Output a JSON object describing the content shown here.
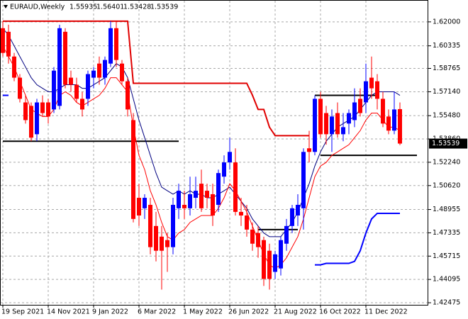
{
  "chart_data": {
    "type": "candlestick",
    "title": "EURAUD,Weekly",
    "categories": [
      "19 Sep 2021",
      null,
      null,
      null,
      null,
      null,
      null,
      null,
      "14 Nov 2021",
      null,
      null,
      null,
      null,
      null,
      null,
      null,
      "9 Jan 2022",
      null,
      null,
      null,
      null,
      null,
      null,
      null,
      "6 Mar 2022",
      null,
      null,
      null,
      null,
      null,
      null,
      null,
      "1 May 2022",
      null,
      null,
      null,
      null,
      null,
      null,
      null,
      "26 Jun 2022",
      null,
      null,
      null,
      null,
      null,
      null,
      null,
      "21 Aug 2022",
      null,
      null,
      null,
      null,
      null,
      null,
      null,
      "16 Oct 2022",
      null,
      null,
      null,
      null,
      null,
      null,
      null,
      "11 Dec 2022",
      null,
      null,
      null,
      null,
      null,
      null
    ],
    "open": [
      1.6156,
      1.6131,
      1.5959,
      1.5812,
      1.564,
      1.5616,
      1.5419,
      1.564,
      1.564,
      1.5591,
      1.5616,
      1.6131,
      1.5812,
      1.5763,
      1.5665,
      1.5665,
      1.5812,
      1.591,
      1.5812,
      1.591,
      1.6156,
      1.591,
      1.5787,
      1.5517,
      1.4977,
      1.4904,
      1.4928,
      1.4781,
      1.4707,
      1.4683,
      1.4634,
      1.4904,
      1.4928,
      1.4904,
      1.4977,
      1.5075,
      1.5026,
      1.5002,
      1.4928,
      1.5124,
      1.5223,
      1.5223,
      1.4879,
      1.4854,
      1.4756,
      1.4732,
      1.4683,
      1.4609,
      1.4462,
      1.4486,
      1.4658,
      1.4781,
      1.4854,
      1.4904,
      1.5321,
      1.5296,
      1.5665,
      1.5566,
      1.5419,
      1.5566,
      1.5419,
      1.5493,
      1.5517,
      1.5665,
      1.564,
      1.5812,
      1.5787,
      1.5665,
      1.5542,
      1.5444,
      1.55935
    ],
    "high": [
      1.6205,
      1.618,
      1.5984,
      1.5837,
      1.5689,
      1.564,
      1.5665,
      1.5689,
      1.5665,
      1.5886,
      1.618,
      1.6156,
      1.5861,
      1.5812,
      1.5714,
      1.5861,
      1.5886,
      1.5959,
      1.5959,
      1.6205,
      1.6205,
      1.5935,
      1.5812,
      1.5566,
      1.5075,
      1.5002,
      1.4977,
      1.4879,
      1.4781,
      1.4732,
      1.4977,
      1.5075,
      1.5026,
      1.5124,
      1.5124,
      1.5173,
      1.5075,
      1.5075,
      1.5173,
      1.5272,
      1.5395,
      1.5321,
      1.4977,
      1.4928,
      1.4806,
      1.4781,
      1.4707,
      1.4658,
      1.4609,
      1.4707,
      1.483,
      1.4928,
      1.5002,
      1.5321,
      1.5443,
      1.5689,
      1.5714,
      1.5616,
      1.5591,
      1.564,
      1.5566,
      1.5591,
      1.5738,
      1.5738,
      1.591,
      1.5959,
      1.5837,
      1.5714,
      1.5591,
      1.5714,
      1.56401
    ],
    "low": [
      1.5959,
      1.591,
      1.5787,
      1.564,
      1.5493,
      1.537,
      1.537,
      1.5542,
      1.5493,
      1.5566,
      1.5591,
      1.5738,
      1.5714,
      1.564,
      1.5542,
      1.5616,
      1.5738,
      1.5763,
      1.5763,
      1.5886,
      1.5886,
      1.5763,
      1.5542,
      1.4806,
      1.4781,
      1.483,
      1.4584,
      1.4535,
      1.4339,
      1.4462,
      1.4584,
      1.483,
      1.483,
      1.4854,
      1.4904,
      1.4879,
      1.4904,
      1.4781,
      1.4879,
      1.5075,
      1.5173,
      1.4854,
      1.4781,
      1.4707,
      1.4609,
      1.456,
      1.4364,
      1.4339,
      1.4413,
      1.4437,
      1.4609,
      1.4732,
      1.4781,
      1.4756,
      1.5223,
      1.5272,
      1.5395,
      1.5346,
      1.5296,
      1.5395,
      1.537,
      1.5419,
      1.5468,
      1.5542,
      1.5566,
      1.5665,
      1.5591,
      1.5468,
      1.5419,
      1.5419,
      1.53428
    ],
    "close": [
      1.5984,
      1.5959,
      1.5812,
      1.5665,
      1.5517,
      1.5395,
      1.564,
      1.5566,
      1.5542,
      1.5861,
      1.6156,
      1.5763,
      1.5763,
      1.5665,
      1.5591,
      1.5837,
      1.5861,
      1.5812,
      1.5935,
      1.6156,
      1.5935,
      1.5787,
      1.5591,
      1.483,
      1.4854,
      1.4977,
      1.4634,
      1.4609,
      1.4609,
      1.4634,
      1.4928,
      1.5026,
      1.4904,
      1.5002,
      1.5026,
      1.4904,
      1.4977,
      1.4854,
      1.5149,
      1.5223,
      1.5296,
      1.4879,
      1.4854,
      1.4756,
      1.4658,
      1.4634,
      1.4413,
      1.4413,
      1.4584,
      1.4683,
      1.4781,
      1.4904,
      1.4928,
      1.5296,
      1.5296,
      1.5665,
      1.5419,
      1.5419,
      1.5542,
      1.5419,
      1.5468,
      1.5566,
      1.564,
      1.5566,
      1.5787,
      1.5738,
      1.5665,
      1.5493,
      1.5444,
      1.5591,
      1.53539
    ],
    "up_color": "#0000ff",
    "down_color": "#ff0000",
    "lines": [
      {
        "color": "#000080",
        "width": 1,
        "values": [
          1.6156,
          1.6107,
          1.6033,
          1.5959,
          1.5886,
          1.5812,
          1.5763,
          1.5738,
          1.5714,
          1.5714,
          1.5738,
          1.5763,
          1.5763,
          1.5763,
          1.5738,
          1.5738,
          1.5763,
          1.5787,
          1.5812,
          1.5861,
          1.591,
          1.5886,
          1.5812,
          1.5665,
          1.5517,
          1.5395,
          1.5272,
          1.5149,
          1.5051,
          1.5026,
          1.5002,
          1.5026,
          1.5002,
          1.5026,
          1.5002,
          1.5002,
          1.4977,
          1.4977,
          1.5002,
          1.5026,
          1.5051,
          1.5002,
          1.4953,
          1.4904,
          1.483,
          1.4781,
          1.4732,
          1.4707,
          1.4707,
          1.4707,
          1.4756,
          1.4806,
          1.4879,
          1.4977,
          1.5075,
          1.5198,
          1.5296,
          1.537,
          1.5419,
          1.5468,
          1.5493,
          1.5517,
          1.5542,
          1.5591,
          1.564,
          1.5689,
          1.5714,
          1.5714,
          1.5714,
          1.5714,
          1.5689
        ]
      },
      {
        "color": "#ff0000",
        "width": 1,
        "values": [
          1.6033,
          1.5959,
          1.5886,
          1.5787,
          1.5689,
          1.5591,
          1.5566,
          1.5542,
          1.5542,
          1.5591,
          1.5689,
          1.5714,
          1.5689,
          1.564,
          1.5616,
          1.564,
          1.5665,
          1.5689,
          1.5738,
          1.5812,
          1.5812,
          1.5763,
          1.5714,
          1.5468,
          1.5272,
          1.5173,
          1.5026,
          1.4928,
          1.4806,
          1.4707,
          1.4683,
          1.4732,
          1.4756,
          1.4806,
          1.483,
          1.4854,
          1.4854,
          1.4854,
          1.4904,
          1.4977,
          1.5075,
          1.5026,
          1.4953,
          1.4879,
          1.4781,
          1.4683,
          1.4584,
          1.4511,
          1.4486,
          1.4511,
          1.456,
          1.4634,
          1.4707,
          1.483,
          1.4977,
          1.5124,
          1.5198,
          1.5223,
          1.5272,
          1.5296,
          1.5321,
          1.5346,
          1.5395,
          1.5444,
          1.5517,
          1.5566,
          1.5566,
          1.5517,
          1.5468,
          1.5468,
          1.5444
        ]
      },
      {
        "color": "#e00000",
        "width": 2,
        "values": [
          1.6205,
          1.6205,
          1.6205,
          1.6205,
          1.6205,
          1.6205,
          1.6205,
          1.6205,
          1.6205,
          1.6205,
          1.6205,
          1.6205,
          1.6205,
          1.6205,
          1.6205,
          1.6205,
          1.6205,
          1.6205,
          1.6205,
          1.6205,
          1.6205,
          1.6205,
          1.6205,
          1.5773,
          1.5773,
          1.5773,
          1.5773,
          1.5773,
          1.5773,
          1.5773,
          1.5773,
          1.5773,
          1.5773,
          1.5773,
          1.5773,
          1.5773,
          1.5773,
          1.5773,
          1.5773,
          1.5773,
          1.5773,
          1.5773,
          1.5773,
          1.5773,
          1.569,
          1.5591,
          1.5591,
          1.5468,
          1.5409,
          1.5409,
          1.5409,
          1.5409,
          1.5409,
          1.5409,
          1.5409,
          null,
          null,
          null,
          null,
          null,
          null,
          null,
          null,
          null,
          null,
          null,
          null,
          null,
          null,
          null,
          null
        ]
      },
      {
        "color": "#0000ff",
        "width": 2,
        "values": [
          1.5689,
          1.5689,
          null,
          null,
          null,
          null,
          null,
          null,
          null,
          null,
          null,
          null,
          null,
          null,
          null,
          null,
          null,
          null,
          null,
          null,
          null,
          null,
          null,
          null,
          null,
          null,
          null,
          null,
          null,
          null,
          null,
          null,
          null,
          null,
          null,
          null,
          null,
          null,
          null,
          null,
          null,
          null,
          null,
          null,
          null,
          null,
          null,
          null,
          null,
          null,
          null,
          null,
          null,
          null,
          null,
          1.4511,
          1.4511,
          1.4521,
          1.4521,
          1.4521,
          1.4521,
          1.4521,
          1.4535,
          1.4609,
          1.4732,
          1.483,
          1.4869,
          1.4869,
          1.4869,
          1.4869,
          1.4869
        ]
      }
    ],
    "levels": [
      {
        "from": 0,
        "to": 31,
        "value": 1.537
      },
      {
        "from": 45,
        "to": 52,
        "value": 1.4756
      },
      {
        "from": 55,
        "to": 66,
        "value": 1.5689
      },
      {
        "from": 56,
        "to": 73,
        "value": 1.5272
      }
    ],
    "ylim": [
      1.4233,
      1.6352
    ],
    "yticks": [
      {
        "value": 1.62,
        "label": "1.62000"
      },
      {
        "value": 1.60335,
        "label": "1.60335"
      },
      {
        "value": 1.58765,
        "label": "1.58765"
      },
      {
        "value": 1.5714,
        "label": "1.57140"
      },
      {
        "value": 1.5548,
        "label": "1.55480"
      },
      {
        "value": 1.5386,
        "label": "1.53860"
      },
      {
        "value": 1.5224,
        "label": "1.52240"
      },
      {
        "value": 1.5062,
        "label": "1.50620"
      },
      {
        "value": 1.48955,
        "label": "1.48955"
      },
      {
        "value": 1.47335,
        "label": "1.47335"
      },
      {
        "value": 1.45715,
        "label": "1.45715"
      },
      {
        "value": 1.44095,
        "label": "1.44095"
      },
      {
        "value": 1.42475,
        "label": "1.42475"
      }
    ],
    "grid": true
  }
}
